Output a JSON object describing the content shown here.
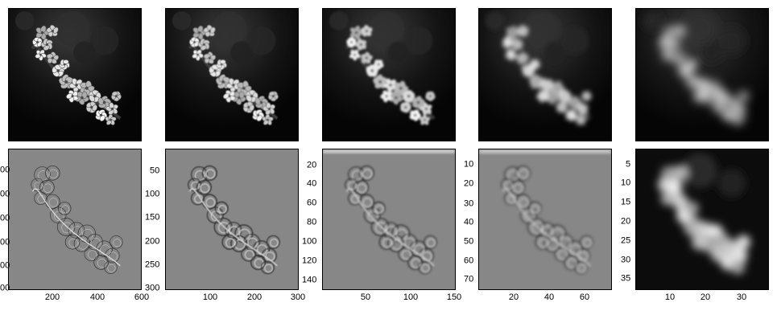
{
  "figure": {
    "top_row": [
      {
        "id": "blur-0",
        "blur": 0
      },
      {
        "id": "blur-1",
        "blur": 0.6
      },
      {
        "id": "blur-2",
        "blur": 1.4
      },
      {
        "id": "blur-3",
        "blur": 3.0
      },
      {
        "id": "blur-4",
        "blur": 6.0
      }
    ],
    "bottom_row": [
      {
        "id": "detail-600",
        "style": "edges-fine",
        "y_ticks": [
          "00",
          "00",
          "00",
          "00",
          "00",
          "00"
        ],
        "x_ticks": [
          "200",
          "400",
          "600"
        ]
      },
      {
        "id": "detail-300",
        "style": "edges-medium",
        "y_ticks": [
          "50",
          "100",
          "150",
          "200",
          "250",
          "300"
        ],
        "x_ticks": [
          "100",
          "200",
          "300"
        ]
      },
      {
        "id": "detail-150",
        "style": "edges-coarse",
        "y_ticks": [
          "20",
          "40",
          "60",
          "80",
          "100",
          "120",
          "140"
        ],
        "x_ticks": [
          "50",
          "100",
          "150"
        ]
      },
      {
        "id": "detail-75",
        "style": "edges-blocky",
        "y_ticks": [
          "10",
          "20",
          "30",
          "40",
          "50",
          "60",
          "70"
        ],
        "x_ticks": [
          "20",
          "40",
          "60"
        ]
      },
      {
        "id": "approx-38",
        "style": "lowres",
        "y_ticks": [
          "5",
          "10",
          "15",
          "20",
          "25",
          "30",
          "35"
        ],
        "x_ticks": [
          "10",
          "20",
          "30"
        ]
      }
    ]
  }
}
